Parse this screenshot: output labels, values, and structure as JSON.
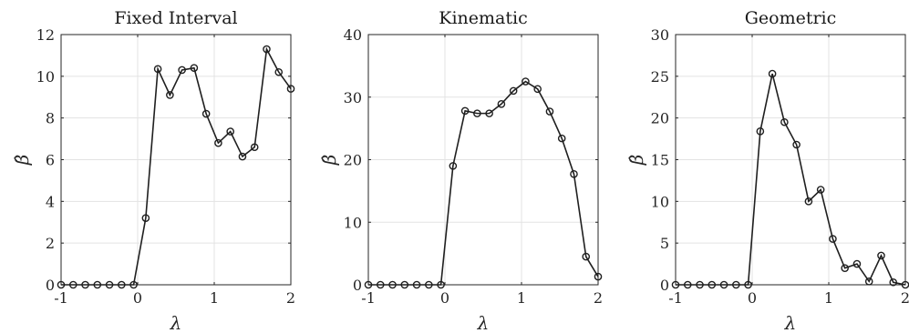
{
  "chart_data": [
    {
      "type": "line",
      "title": "Fixed Interval",
      "xlabel": "λ",
      "ylabel": "β̂",
      "xlim": [
        -1,
        2
      ],
      "ylim": [
        0,
        12
      ],
      "xticks": [
        "-1",
        "0",
        "1",
        "2"
      ],
      "yticks": [
        "0",
        "2",
        "4",
        "6",
        "8",
        "10",
        "12"
      ],
      "grid": true,
      "x": [
        -1.0,
        -0.8421,
        -0.6842,
        -0.5263,
        -0.3684,
        -0.2105,
        -0.0526,
        0.1053,
        0.2632,
        0.4211,
        0.5789,
        0.7368,
        0.8947,
        1.0526,
        1.2105,
        1.3684,
        1.5263,
        1.6842,
        1.8421,
        2.0
      ],
      "y": [
        0,
        0,
        0,
        0,
        0,
        0,
        0,
        3.2,
        10.35,
        9.1,
        10.3,
        10.4,
        8.2,
        6.8,
        7.35,
        6.15,
        6.6,
        11.3,
        10.2,
        9.4
      ]
    },
    {
      "type": "line",
      "title": "Kinematic",
      "xlabel": "λ",
      "ylabel": "β̂",
      "xlim": [
        -1,
        2
      ],
      "ylim": [
        0,
        40
      ],
      "xticks": [
        "-1",
        "0",
        "1",
        "2"
      ],
      "yticks": [
        "0",
        "10",
        "20",
        "30",
        "40"
      ],
      "grid": true,
      "x": [
        -1.0,
        -0.8421,
        -0.6842,
        -0.5263,
        -0.3684,
        -0.2105,
        -0.0526,
        0.1053,
        0.2632,
        0.4211,
        0.5789,
        0.7368,
        0.8947,
        1.0526,
        1.2105,
        1.3684,
        1.5263,
        1.6842,
        1.8421,
        2.0
      ],
      "y": [
        0,
        0,
        0,
        0,
        0,
        0,
        0,
        19.0,
        27.8,
        27.4,
        27.4,
        28.9,
        31.0,
        32.5,
        31.3,
        27.7,
        23.4,
        17.7,
        4.5,
        1.3
      ]
    },
    {
      "type": "line",
      "title": "Geometric",
      "xlabel": "λ",
      "ylabel": "β̂",
      "xlim": [
        -1,
        2
      ],
      "ylim": [
        0,
        30
      ],
      "xticks": [
        "-1",
        "0",
        "1",
        "2"
      ],
      "yticks": [
        "0",
        "5",
        "10",
        "15",
        "20",
        "25",
        "30"
      ],
      "grid": true,
      "x": [
        -1.0,
        -0.8421,
        -0.6842,
        -0.5263,
        -0.3684,
        -0.2105,
        -0.0526,
        0.1053,
        0.2632,
        0.4211,
        0.5789,
        0.7368,
        0.8947,
        1.0526,
        1.2105,
        1.3684,
        1.5263,
        1.6842,
        1.8421,
        2.0
      ],
      "y": [
        0,
        0,
        0,
        0,
        0,
        0,
        0,
        18.4,
        25.3,
        19.5,
        16.8,
        10.0,
        11.4,
        5.5,
        2.0,
        2.5,
        0.4,
        3.5,
        0.3,
        0.0
      ]
    }
  ]
}
